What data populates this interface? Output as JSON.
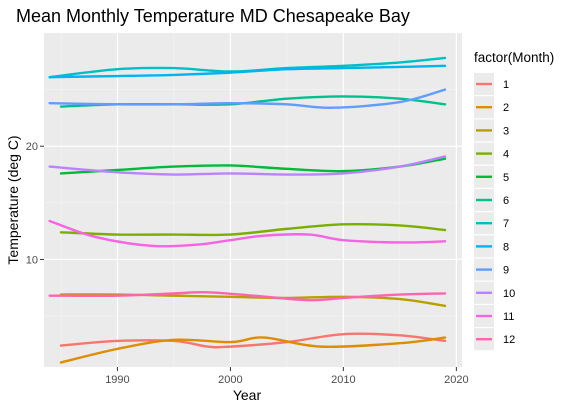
{
  "chart_data": {
    "type": "line",
    "title": "Mean Monthly Temperature MD Chesapeake Bay",
    "xlabel": "Year",
    "ylabel": "Temperature (deg C)",
    "xlim": [
      1983.5,
      2020.5
    ],
    "ylim": [
      0.5,
      30.0
    ],
    "x_ticks": [
      1990,
      2000,
      2010,
      2020
    ],
    "y_ticks": [
      10,
      20
    ],
    "grid": true,
    "legend_title": "factor(Month)",
    "legend_position": "right",
    "series": [
      {
        "name": "1",
        "color": "#F8766D",
        "x": [
          1985,
          1990,
          1995,
          1998,
          2000,
          2005,
          2010,
          2015,
          2019
        ],
        "y": [
          2.4,
          2.8,
          2.8,
          2.3,
          2.3,
          2.7,
          3.4,
          3.3,
          2.8
        ]
      },
      {
        "name": "2",
        "color": "#DE8C00",
        "x": [
          1985,
          1990,
          1995,
          2000,
          2003,
          2008,
          2015,
          2019
        ],
        "y": [
          0.9,
          2.1,
          2.9,
          2.7,
          3.1,
          2.3,
          2.6,
          3.1
        ]
      },
      {
        "name": "3",
        "color": "#B79F00",
        "x": [
          1985,
          1990,
          1995,
          2000,
          2005,
          2010,
          2015,
          2019
        ],
        "y": [
          6.9,
          6.9,
          6.8,
          6.7,
          6.6,
          6.7,
          6.5,
          5.9
        ]
      },
      {
        "name": "4",
        "color": "#7CAE00",
        "x": [
          1985,
          1990,
          1995,
          2000,
          2005,
          2010,
          2015,
          2019
        ],
        "y": [
          12.4,
          12.2,
          12.2,
          12.2,
          12.7,
          13.1,
          13.0,
          12.6
        ]
      },
      {
        "name": "5",
        "color": "#00BA38",
        "x": [
          1985,
          1990,
          1995,
          2000,
          2005,
          2010,
          2015,
          2019
        ],
        "y": [
          17.6,
          17.9,
          18.2,
          18.3,
          18.0,
          17.8,
          18.2,
          18.9
        ]
      },
      {
        "name": "6",
        "color": "#00C08B",
        "x": [
          1985,
          1990,
          1995,
          2000,
          2005,
          2010,
          2015,
          2019
        ],
        "y": [
          23.5,
          23.7,
          23.7,
          23.7,
          24.2,
          24.4,
          24.2,
          23.7
        ]
      },
      {
        "name": "7",
        "color": "#00BFC4",
        "x": [
          1984,
          1990,
          1995,
          2000,
          2005,
          2010,
          2015,
          2019
        ],
        "y": [
          26.1,
          26.8,
          26.9,
          26.6,
          26.9,
          27.1,
          27.4,
          27.8
        ]
      },
      {
        "name": "8",
        "color": "#00B4F0",
        "x": [
          1984,
          1990,
          1995,
          2000,
          2005,
          2010,
          2015,
          2019
        ],
        "y": [
          26.1,
          26.2,
          26.3,
          26.5,
          26.8,
          26.9,
          27.0,
          27.1
        ]
      },
      {
        "name": "9",
        "color": "#619CFF",
        "x": [
          1984,
          1990,
          1995,
          2000,
          2005,
          2009,
          2015,
          2019
        ],
        "y": [
          23.8,
          23.7,
          23.7,
          23.8,
          23.7,
          23.4,
          23.9,
          25.0
        ]
      },
      {
        "name": "10",
        "color": "#B983FF",
        "x": [
          1984,
          1990,
          1995,
          2000,
          2005,
          2010,
          2015,
          2019
        ],
        "y": [
          18.2,
          17.7,
          17.5,
          17.6,
          17.5,
          17.6,
          18.2,
          19.1
        ]
      },
      {
        "name": "11",
        "color": "#F564E3",
        "x": [
          1984,
          1988,
          1993,
          1997,
          2000,
          2003,
          2007,
          2010,
          2015,
          2019
        ],
        "y": [
          13.4,
          12.0,
          11.2,
          11.3,
          11.7,
          12.1,
          12.2,
          11.7,
          11.5,
          11.6
        ]
      },
      {
        "name": "12",
        "color": "#FF64B0",
        "x": [
          1984,
          1990,
          1995,
          1998,
          2002,
          2007,
          2010,
          2015,
          2019
        ],
        "y": [
          6.8,
          6.8,
          7.0,
          7.1,
          6.8,
          6.4,
          6.6,
          6.9,
          7.0
        ]
      }
    ]
  }
}
